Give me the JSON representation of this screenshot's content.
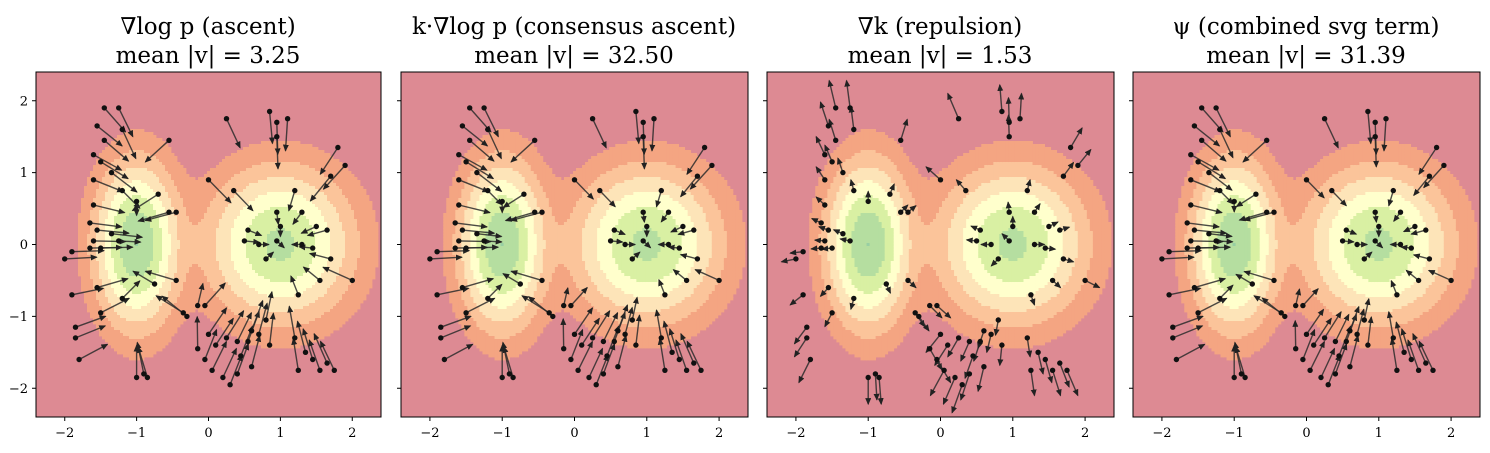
{
  "figure": {
    "panels": [
      {
        "title_line1": "∇log p (ascent)",
        "title_line2": "mean |v| = 3.25"
      },
      {
        "title_line1": "k·∇log p (consensus ascent)",
        "title_line2": "mean |v| = 32.50"
      },
      {
        "title_line1": "∇k (repulsion)",
        "title_line2": "mean |v| = 1.53"
      },
      {
        "title_line1": "ψ (combined svg term)",
        "title_line2": "mean |v| = 31.39"
      }
    ]
  },
  "chart_data": [
    {
      "type": "contour+quiver",
      "title": "∇log p (ascent)  mean |v| = 3.25",
      "mean_abs_v": 3.25,
      "xlim": [
        -2.4,
        2.4
      ],
      "ylim": [
        -2.4,
        2.4
      ],
      "x_ticks": [
        -2,
        -1,
        0,
        1,
        2
      ],
      "y_ticks": [
        2,
        1,
        0,
        -1,
        -2
      ],
      "density": "mixture of two Gaussians centered near (-1, 0) and (1, 0)",
      "colormap": [
        "#dd8a93",
        "#f4a582",
        "#fdd9b5",
        "#ffffcc",
        "#d9f0a3",
        "#a6d96a",
        "#8cc8a0",
        "#7fb99a"
      ],
      "grid": false
    },
    {
      "type": "contour+quiver",
      "title": "k·∇log p (consensus ascent)  mean |v| = 32.50",
      "mean_abs_v": 32.5,
      "xlim": [
        -2.4,
        2.4
      ],
      "ylim": [
        -2.4,
        2.4
      ],
      "x_ticks": [
        -2,
        -1,
        0,
        1,
        2
      ],
      "y_ticks": [],
      "grid": false
    },
    {
      "type": "contour+quiver",
      "title": "∇k (repulsion)  mean |v| = 1.53",
      "mean_abs_v": 1.53,
      "xlim": [
        -2.4,
        2.4
      ],
      "ylim": [
        -2.4,
        2.4
      ],
      "x_ticks": [
        -2,
        -1,
        0,
        1,
        2
      ],
      "y_ticks": [],
      "grid": false
    },
    {
      "type": "contour+quiver",
      "title": "ψ (combined svg term)  mean |v| = 31.39",
      "mean_abs_v": 31.39,
      "xlim": [
        -2.4,
        2.4
      ],
      "ylim": [
        -2.4,
        2.4
      ],
      "x_ticks": [
        -2,
        -1,
        0,
        1,
        2
      ],
      "y_ticks": [],
      "grid": false
    }
  ],
  "particles": [
    [
      -1.45,
      1.9
    ],
    [
      -1.25,
      1.9
    ],
    [
      -1.2,
      1.6
    ],
    [
      -1.55,
      1.65
    ],
    [
      -1.45,
      1.45
    ],
    [
      -1.6,
      1.25
    ],
    [
      -1.5,
      1.15
    ],
    [
      -1.35,
      1.0
    ],
    [
      -1.2,
      0.75
    ],
    [
      -1.0,
      0.6
    ],
    [
      -0.7,
      0.7
    ],
    [
      -0.55,
      1.45
    ],
    [
      -0.55,
      0.45
    ],
    [
      -0.45,
      0.45
    ],
    [
      -1.6,
      0.9
    ],
    [
      -1.6,
      0.55
    ],
    [
      -1.65,
      0.3
    ],
    [
      -1.55,
      0.2
    ],
    [
      -1.35,
      0.15
    ],
    [
      -1.25,
      0.05
    ],
    [
      -1.6,
      0.05
    ],
    [
      -1.5,
      -0.05
    ],
    [
      -1.65,
      -0.05
    ],
    [
      -1.9,
      -0.1
    ],
    [
      -2.0,
      -0.2
    ],
    [
      -1.9,
      -0.7
    ],
    [
      -1.55,
      -0.6
    ],
    [
      -1.2,
      -0.75
    ],
    [
      -1.5,
      -0.95
    ],
    [
      -1.85,
      -1.15
    ],
    [
      -1.85,
      -1.3
    ],
    [
      -1.8,
      -1.6
    ],
    [
      -0.75,
      -0.55
    ],
    [
      -0.45,
      -0.5
    ],
    [
      -0.35,
      -0.95
    ],
    [
      -0.3,
      -1.0
    ],
    [
      -0.15,
      -0.85
    ],
    [
      -0.05,
      -0.85
    ],
    [
      0.5,
      0.05
    ],
    [
      0.55,
      0.2
    ],
    [
      0.7,
      0.0
    ],
    [
      0.8,
      -0.2
    ],
    [
      0.95,
      0.05
    ],
    [
      1.0,
      0.25
    ],
    [
      0.95,
      0.45
    ],
    [
      1.3,
      0.45
    ],
    [
      1.3,
      0.0
    ],
    [
      1.5,
      0.25
    ],
    [
      1.45,
      -0.05
    ],
    [
      0.95,
      1.5
    ],
    [
      0.95,
      1.7
    ],
    [
      1.1,
      1.75
    ],
    [
      0.85,
      1.85
    ],
    [
      0.25,
      1.75
    ],
    [
      0.35,
      0.75
    ],
    [
      0.0,
      0.9
    ],
    [
      1.65,
      0.2
    ],
    [
      1.7,
      -0.2
    ],
    [
      2.0,
      -0.5
    ],
    [
      1.25,
      -0.7
    ],
    [
      1.55,
      -0.5
    ],
    [
      1.8,
      1.35
    ],
    [
      1.9,
      1.1
    ],
    [
      1.7,
      0.95
    ],
    [
      1.2,
      0.75
    ],
    [
      0.0,
      -1.25
    ],
    [
      0.1,
      -1.4
    ],
    [
      0.25,
      -1.3
    ],
    [
      0.4,
      -1.35
    ],
    [
      0.45,
      -1.55
    ],
    [
      0.55,
      -1.35
    ],
    [
      0.6,
      -1.2
    ],
    [
      0.7,
      -1.25
    ],
    [
      0.8,
      -1.05
    ],
    [
      0.85,
      -1.4
    ],
    [
      0.6,
      -1.7
    ],
    [
      0.4,
      -1.8
    ],
    [
      0.3,
      -1.95
    ],
    [
      0.2,
      -1.85
    ],
    [
      0.05,
      -1.75
    ],
    [
      1.2,
      -1.3
    ],
    [
      1.35,
      -1.5
    ],
    [
      1.45,
      -1.6
    ],
    [
      1.55,
      -1.75
    ],
    [
      1.65,
      -1.65
    ],
    [
      1.75,
      -1.75
    ],
    [
      1.25,
      -1.75
    ],
    [
      -1.0,
      -1.85
    ],
    [
      -0.9,
      -1.8
    ],
    [
      -0.85,
      -1.85
    ],
    [
      -0.15,
      -1.45
    ],
    [
      -0.05,
      -1.6
    ]
  ]
}
